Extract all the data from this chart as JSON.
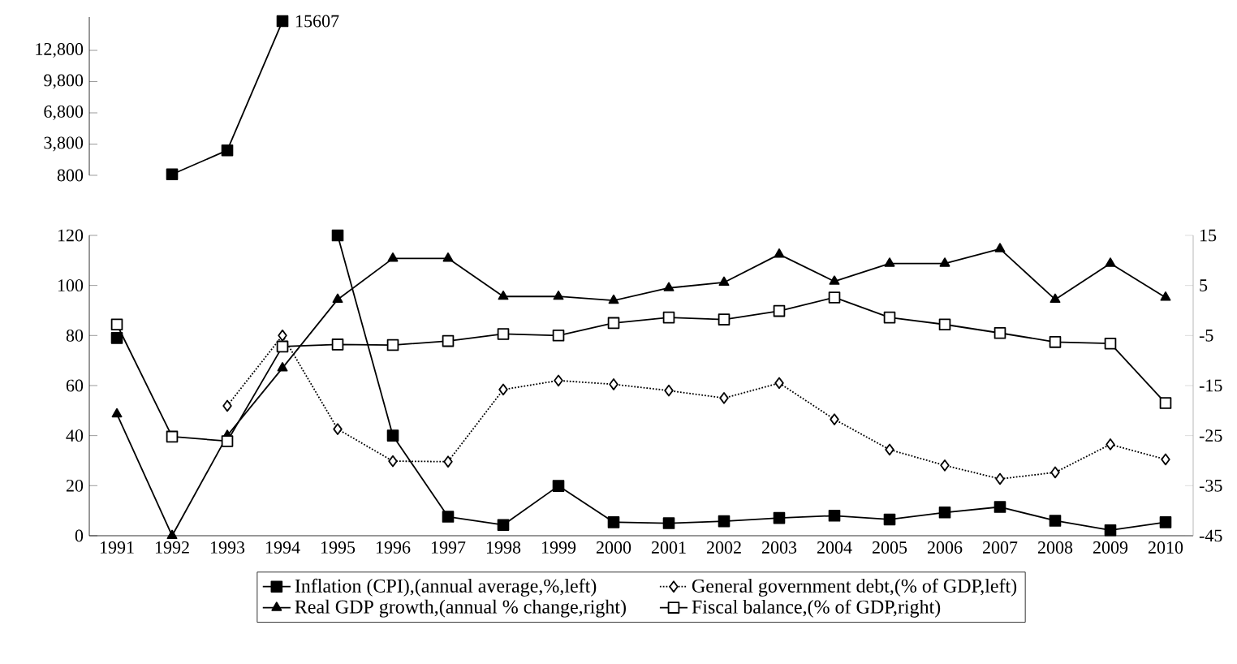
{
  "chart_data": [
    {
      "type": "line",
      "categories": [
        "1991",
        "1992",
        "1993",
        "1994",
        "1995",
        "1996",
        "1997",
        "1998",
        "1999",
        "2000",
        "2001",
        "2002",
        "2003",
        "2004",
        "2005",
        "2006",
        "2007",
        "2008",
        "2009",
        "2010"
      ],
      "ylim": [
        800,
        16000
      ],
      "yticks": [
        800,
        {
          "value": 3800,
          "label": "3,800"
        },
        {
          "value": 6800,
          "label": "6,800"
        },
        {
          "value": 9800,
          "label": "9,800"
        },
        {
          "value": 12800,
          "label": "12,800"
        }
      ],
      "tick_labels": "y",
      "series": [
        {
          "color": "#000000",
          "marker": "square",
          "values": [
            null,
            900,
            3200,
            15607,
            null,
            null,
            null,
            null,
            null,
            null,
            null,
            null,
            null,
            null,
            null,
            null,
            null,
            null,
            null,
            null
          ],
          "value_labels": [
            null,
            null,
            null,
            "15607",
            null,
            null,
            null,
            null,
            null,
            null,
            null,
            null,
            null,
            null,
            null,
            null,
            null,
            null,
            null,
            null
          ]
        }
      ]
    },
    {
      "type": "line",
      "categories": [
        "1991",
        "1992",
        "1993",
        "1994",
        "1995",
        "1996",
        "1997",
        "1998",
        "1999",
        "2000",
        "2001",
        "2002",
        "2003",
        "2004",
        "2005",
        "2006",
        "2007",
        "2008",
        "2009",
        "2010"
      ],
      "ylim": [
        0,
        120
      ],
      "yticks": [
        0,
        20,
        40,
        60,
        80,
        100,
        120
      ],
      "y2lim": [
        -45,
        15
      ],
      "y2ticks": [
        -45,
        -35,
        -25,
        -15,
        -5,
        5,
        15
      ],
      "legend": "bottom",
      "series": [
        {
          "name": "Inflation (CPI),(annual average,%,left)",
          "color": "#000000",
          "marker": "square",
          "line_style": "solid",
          "values": [
            79,
            null,
            null,
            null,
            120,
            40,
            7.6,
            4.3,
            19.9,
            5.4,
            5,
            5.8,
            7.1,
            8,
            6.5,
            9.3,
            11.5,
            6,
            2.2,
            5.4
          ]
        },
        {
          "name": "General government debt,(% of GDP,left)",
          "color": "#000000",
          "marker": "diamond",
          "line_style": "dotted",
          "values": [
            null,
            null,
            51.9,
            80,
            42.6,
            29.8,
            29.6,
            58.4,
            62,
            60.5,
            58,
            55,
            61,
            46.5,
            34.4,
            28.1,
            22.7,
            25.3,
            36.5,
            30.5
          ]
        },
        {
          "name": "Real GDP growth,(annual % change,right)",
          "color": "#000000",
          "marker": "triangle",
          "line_style": "solid",
          "axis": "y2",
          "values": [
            -20.7,
            -45,
            -25,
            -11.5,
            2.2,
            10.4,
            10.4,
            2.8,
            2.8,
            2,
            4.5,
            5.6,
            11.2,
            5.8,
            9.4,
            9.4,
            12.3,
            2.2,
            9.4,
            2.6
          ]
        },
        {
          "name": "Fiscal balance,(% of GDP,right)",
          "color": "#000000",
          "marker": "square",
          "line_style": "solid",
          "axis": "y2",
          "values": [
            -2.8,
            -25.2,
            -26.1,
            -7.2,
            -6.8,
            -6.9,
            -6.1,
            -4.7,
            -5,
            -2.5,
            -1.4,
            -1.8,
            -0.1,
            2.6,
            -1.4,
            -2.8,
            -4.5,
            -6.3,
            -6.6,
            -18.5
          ]
        }
      ]
    }
  ]
}
